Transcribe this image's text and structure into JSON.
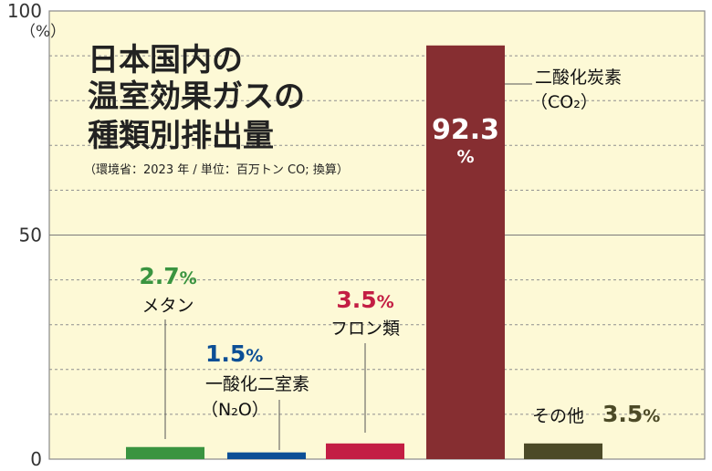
{
  "chart_data": {
    "type": "bar",
    "title_lines": [
      "日本国内の",
      "温室効果ガスの",
      "種類別排出量"
    ],
    "subtitle": "（環境省：2023 年 / 単位：百万トン CO; 換算）",
    "ylabel": "（%）",
    "ylim": [
      0,
      100
    ],
    "yticks": [
      {
        "value": 100,
        "label": "100"
      },
      {
        "value": 50,
        "label": "50"
      },
      {
        "value": 0,
        "label": "0"
      }
    ],
    "grid_values": [
      10,
      20,
      30,
      40,
      60,
      70,
      80,
      90
    ],
    "grid": true,
    "bars": [
      {
        "name": "メタン",
        "value": 2.7,
        "value_text": "2.7",
        "unit": "%",
        "color": "#3a9440"
      },
      {
        "name": "一酸化二室素",
        "sub": "（N₂O）",
        "value": 1.5,
        "value_text": "1.5",
        "unit": "%",
        "color": "#0c4f96"
      },
      {
        "name": "フロン類",
        "value": 3.5,
        "value_text": "3.5",
        "unit": "%",
        "color": "#c31e44"
      },
      {
        "name": "二酸化炭素",
        "sub": "（CO₂）",
        "value": 92.3,
        "value_text": "92.3",
        "unit": "%",
        "color": "#862e31"
      },
      {
        "name": "その他",
        "value": 3.5,
        "value_text": "3.5",
        "unit": "%",
        "color": "#4c4a27"
      }
    ],
    "background": "#fdf9d6"
  }
}
